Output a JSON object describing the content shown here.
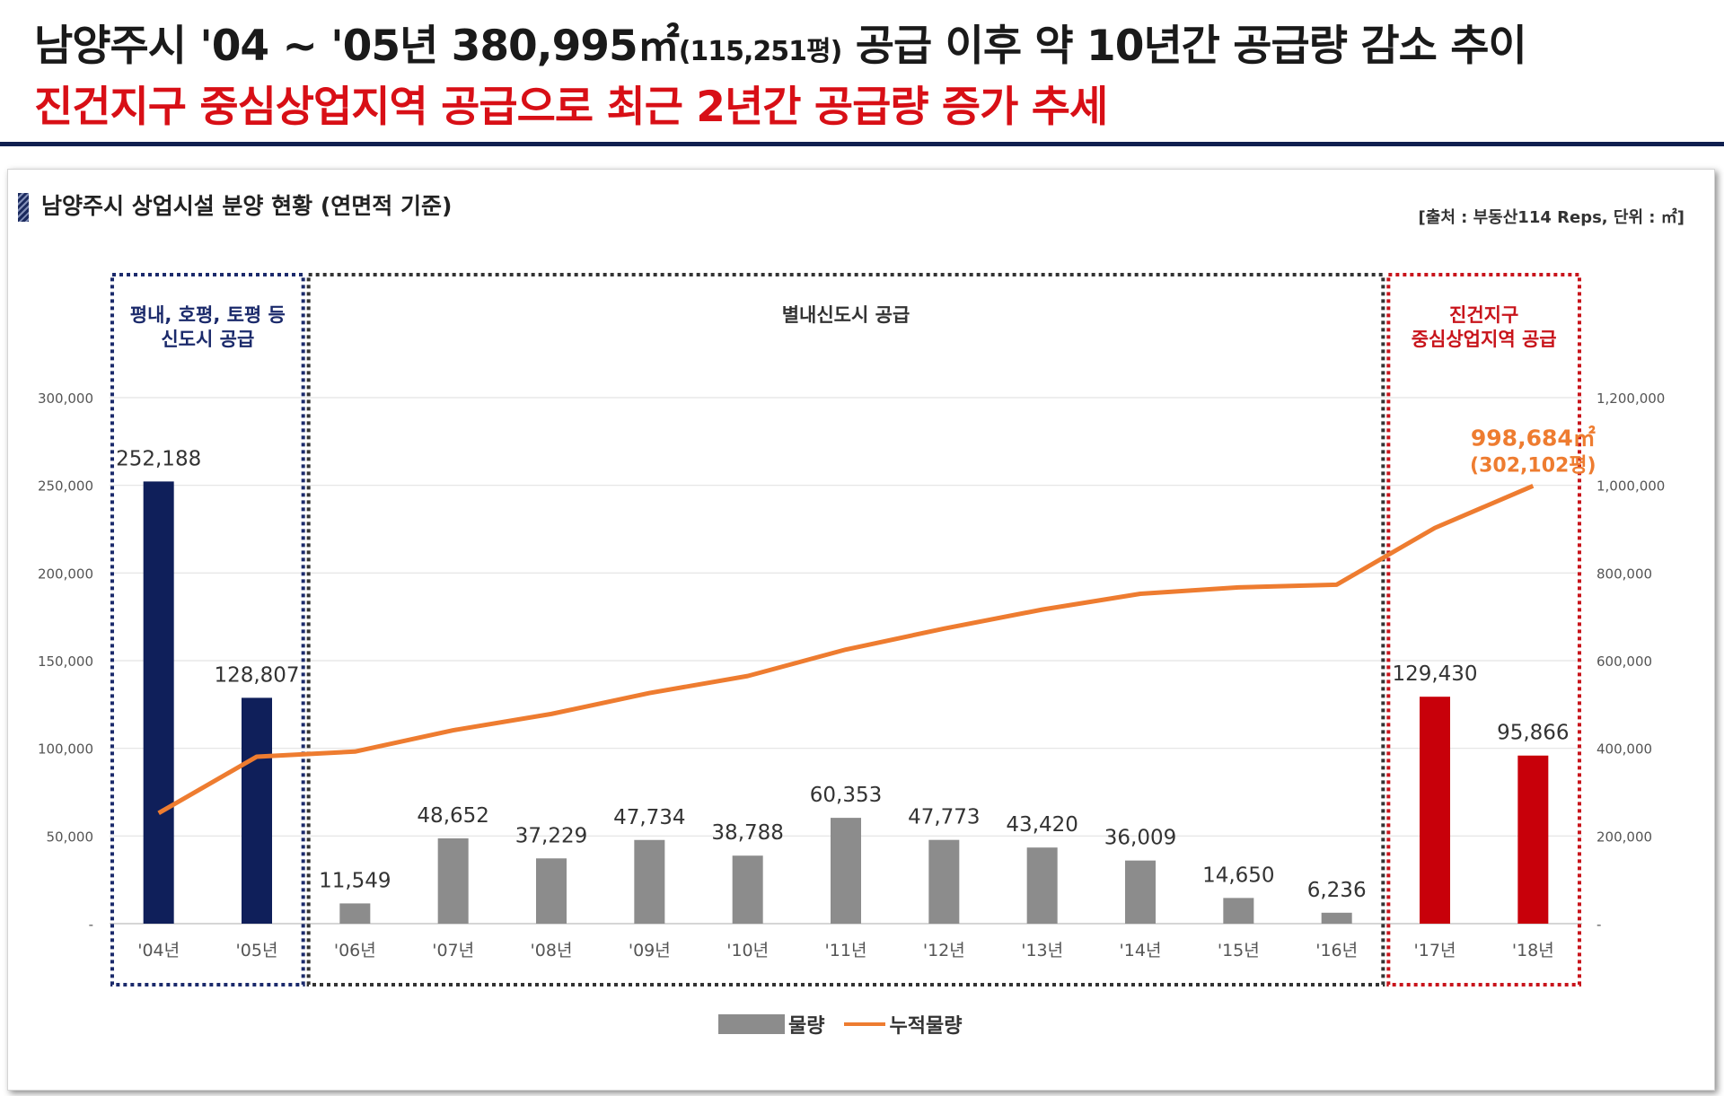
{
  "header": {
    "line1_main": "남양주시 '04 ~ '05년 380,995㎡",
    "line1_paren": "(115,251평)",
    "line1_tail": "공급 이후 약 10년간 공급량 감소 추이",
    "line2": "진건지구 중심상업지역 공급으로 최근 2년간 공급량 증가 추세"
  },
  "section": {
    "title": "남양주시 상업시설 분양 현황 (연면적 기준)",
    "source": "[출처 : 부동산114 Reps, 단위 : ㎡]"
  },
  "groups": [
    {
      "lines": [
        "평내, 호평, 토평 등",
        "신도시 공급"
      ],
      "start": 0,
      "end": 1,
      "color": "#1b2a6b"
    },
    {
      "lines": [
        "별내신도시 공급"
      ],
      "start": 2,
      "end": 12,
      "color": "#333333"
    },
    {
      "lines": [
        "진건지구",
        "중심상업지역 공급"
      ],
      "start": 13,
      "end": 14,
      "color": "#c8141b"
    }
  ],
  "colors": {
    "early": "#0f1f5a",
    "mid": "#8c8c8c",
    "recent": "#c8000a",
    "line": "#ee7c30"
  },
  "chart_data": {
    "type": "bar",
    "categories": [
      "'04년",
      "'05년",
      "'06년",
      "'07년",
      "'08년",
      "'09년",
      "'10년",
      "'11년",
      "'12년",
      "'13년",
      "'14년",
      "'15년",
      "'16년",
      "'17년",
      "'18년"
    ],
    "series": [
      {
        "name": "물량",
        "type": "bar",
        "axis": "left",
        "values": [
          252188,
          128807,
          11549,
          48652,
          37229,
          47734,
          38788,
          60353,
          47773,
          43420,
          36009,
          14650,
          6236,
          129430,
          95866
        ]
      },
      {
        "name": "누적물량",
        "type": "line",
        "axis": "right",
        "values": [
          252188,
          380995,
          392544,
          441196,
          478425,
          526159,
          564947,
          625300,
          673073,
          716493,
          752502,
          767152,
          773388,
          902818,
          998684
        ]
      }
    ],
    "data_labels": [
      "252,188",
      "128,807",
      "11,549",
      "48,652",
      "37,229",
      "47,734",
      "38,788",
      "60,353",
      "47,773",
      "43,420",
      "36,009",
      "14,650",
      "6,236",
      "129,430",
      "95,866"
    ],
    "line_end_label": [
      "998,684㎡",
      "(302,102평)"
    ],
    "yticks_left": [
      "-",
      "50,000",
      "100,000",
      "150,000",
      "200,000",
      "250,000",
      "300,000"
    ],
    "yticks_right": [
      "-",
      "200,000",
      "400,000",
      "600,000",
      "800,000",
      "1,000,000",
      "1,200,000"
    ],
    "ylim_left": [
      0,
      300000
    ],
    "ylim_right": [
      0,
      1200000
    ],
    "grid": true,
    "legend": "bottom-center"
  }
}
